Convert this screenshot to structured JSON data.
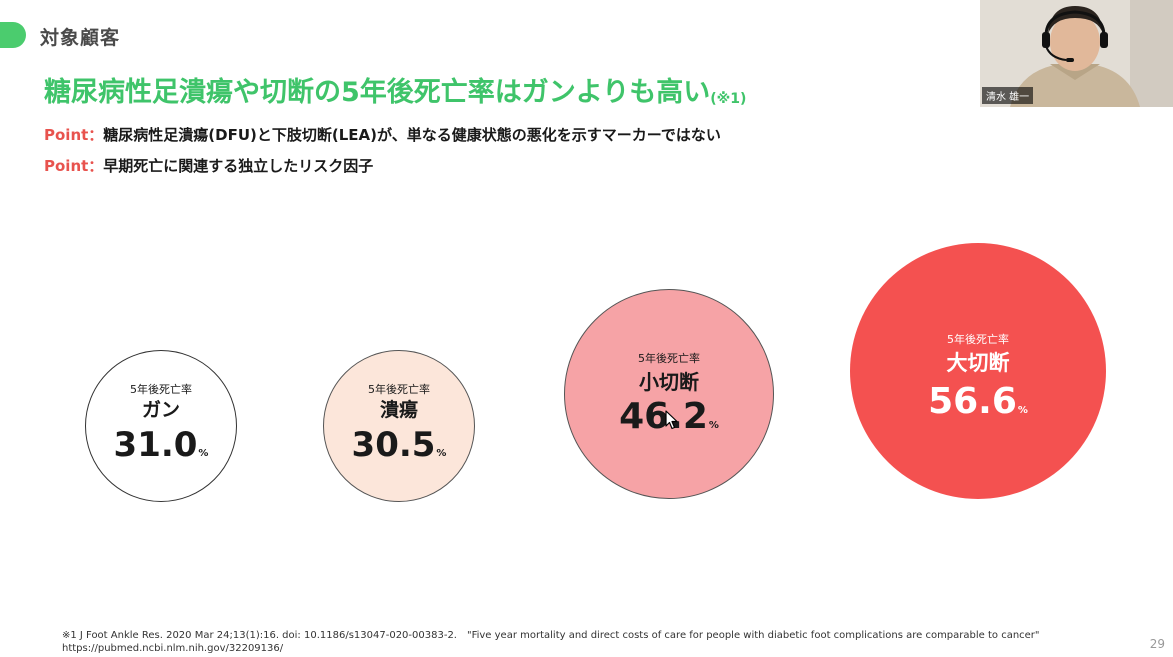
{
  "section": {
    "label": "対象顧客",
    "accent": "#4bcc6e"
  },
  "title": {
    "text": "糖尿病性足潰瘍や切断の5年後死亡率はガンよりも高い",
    "note": "(※1)",
    "color": "#3fc46a"
  },
  "points": [
    {
      "label": "Point：",
      "text": "糖尿病性足潰瘍(DFU)と下肢切断(LEA)が、単なる健康状態の悪化を示すマーカーではない"
    },
    {
      "label": "Point：",
      "text": "早期死亡に関連する独立したリスク因子"
    }
  ],
  "circles": [
    {
      "caption": "5年後死亡率",
      "name": "ガン",
      "value": "31.0",
      "unit": "%",
      "fill": "#ffffff"
    },
    {
      "caption": "5年後死亡率",
      "name": "潰瘍",
      "value": "30.5",
      "unit": "%",
      "fill": "#fce6da"
    },
    {
      "caption": "5年後死亡率",
      "name": "小切断",
      "value": "46.2",
      "unit": "%",
      "fill": "#f6a3a6"
    },
    {
      "caption": "5年後死亡率",
      "name": "大切断",
      "value": "56.6",
      "unit": "%",
      "fill": "#f45150"
    }
  ],
  "webcam": {
    "name": "清水 雄一"
  },
  "footnote": {
    "line1": "※1 J Foot Ankle Res. 2020 Mar 24;13(1):16. doi: 10.1186/s13047-020-00383-2.　\"Five year mortality and direct costs of care for people with diabetic foot complications are comparable to cancer\"",
    "line2": "https://pubmed.ncbi.nlm.nih.gov/32209136/"
  },
  "page_number": "29"
}
